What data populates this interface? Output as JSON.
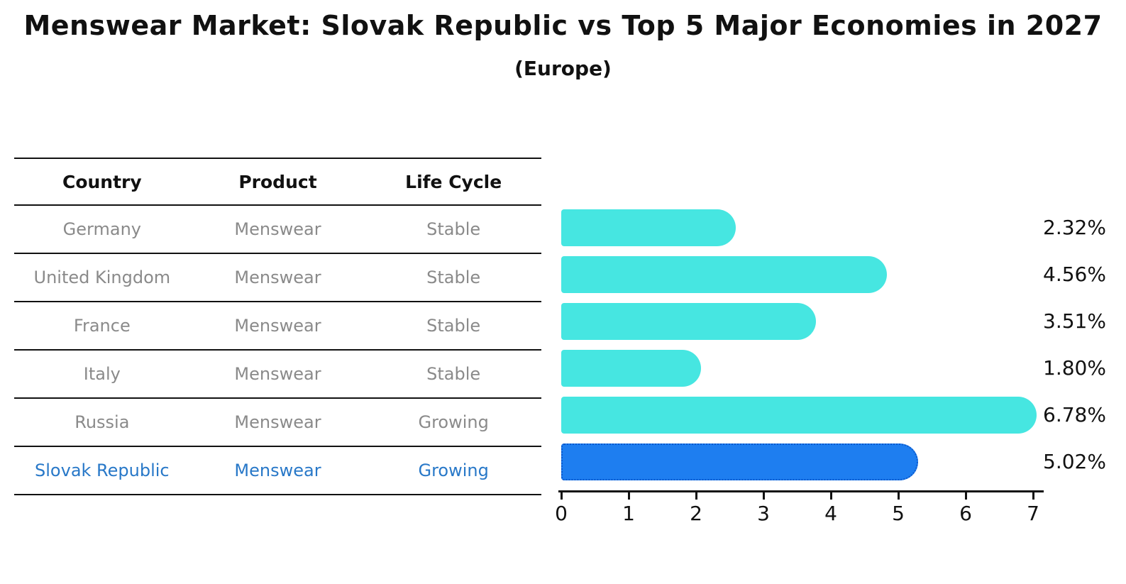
{
  "title": "Menswear Market: Slovak Republic vs Top 5 Major Economies in 2027",
  "subtitle": "(Europe)",
  "table": {
    "headers": [
      "Country",
      "Product",
      "Life Cycle"
    ],
    "rows": [
      {
        "country": "Germany",
        "product": "Menswear",
        "life_cycle": "Stable"
      },
      {
        "country": "United Kingdom",
        "product": "Menswear",
        "life_cycle": "Stable"
      },
      {
        "country": "France",
        "product": "Menswear",
        "life_cycle": "Stable"
      },
      {
        "country": "Italy",
        "product": "Menswear",
        "life_cycle": "Stable"
      },
      {
        "country": "Russia",
        "product": "Menswear",
        "life_cycle": "Growing"
      },
      {
        "country": "Slovak Republic",
        "product": "Menswear",
        "life_cycle": "Growing"
      }
    ],
    "highlight_row_index": 5
  },
  "chart_data": {
    "type": "bar",
    "orientation": "horizontal",
    "title": "Menswear Market: Slovak Republic vs Top 5 Major Economies in 2027",
    "subtitle": "(Europe)",
    "categories": [
      "Germany",
      "United Kingdom",
      "France",
      "Italy",
      "Russia",
      "Slovak Republic"
    ],
    "values": [
      2.32,
      4.56,
      3.51,
      1.8,
      6.78,
      5.02
    ],
    "value_labels": [
      "2.32%",
      "4.56%",
      "3.51%",
      "1.80%",
      "6.78%",
      "5.02%"
    ],
    "xlim": [
      0,
      7
    ],
    "x_ticks": [
      "0",
      "1",
      "2",
      "3",
      "4",
      "5",
      "6",
      "7"
    ],
    "grid": false,
    "legend": false,
    "bar_color": "#46e6e1",
    "highlight_index": 5,
    "highlight_bar_color": "#1e7ef0",
    "highlight_border_color": "#0b58cc",
    "highlight_text_color": "#2878c8"
  }
}
